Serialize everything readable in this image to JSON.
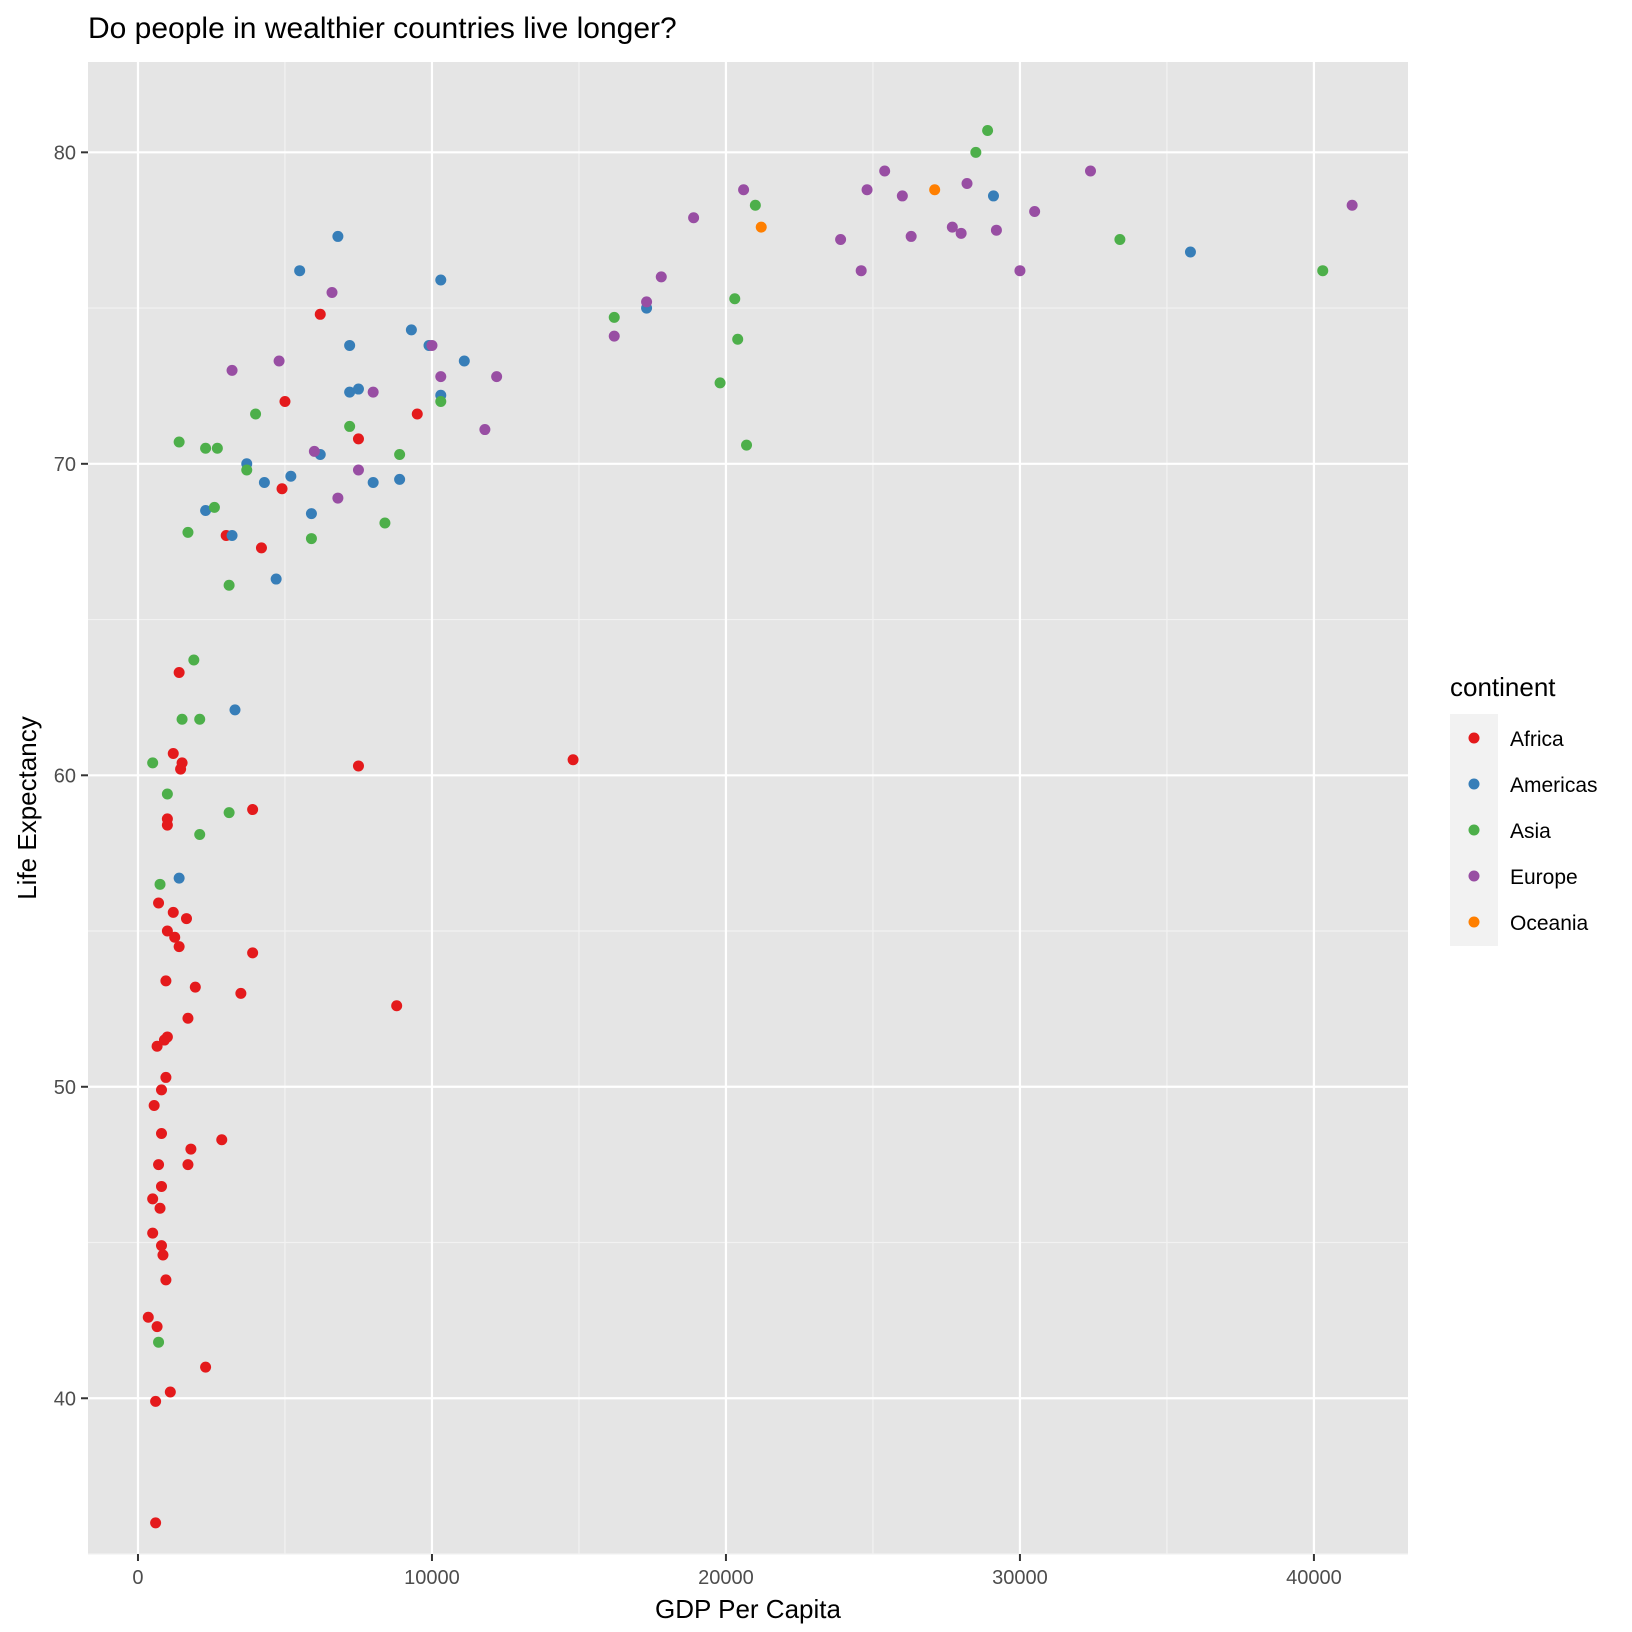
{
  "chart_data": {
    "type": "scatter",
    "title": "Do people in wealthier countries live longer?",
    "xlabel": "GDP Per Capita",
    "ylabel": "Life Expectancy",
    "xlim": [
      -1700,
      43200
    ],
    "ylim": [
      35,
      82.9
    ],
    "x_ticks": [
      0,
      10000,
      20000,
      30000,
      40000
    ],
    "y_ticks": [
      40,
      50,
      60,
      70,
      80
    ],
    "grid": true,
    "legend": {
      "title": "continent",
      "position": "right"
    },
    "colors": {
      "Africa": "#E41A1C",
      "Americas": "#377EB8",
      "Asia": "#4DAF4A",
      "Europe": "#984EA3",
      "Oceania": "#FF7F00"
    },
    "series": [
      {
        "name": "Africa",
        "points": [
          [
            6200,
            74.8
          ],
          [
            5000,
            72.0
          ],
          [
            7500,
            70.8
          ],
          [
            9500,
            71.6
          ],
          [
            4900,
            69.2
          ],
          [
            3000,
            67.7
          ],
          [
            4200,
            67.3
          ],
          [
            1400,
            63.3
          ],
          [
            1200,
            60.7
          ],
          [
            1500,
            60.4
          ],
          [
            1450,
            60.2
          ],
          [
            7500,
            60.3
          ],
          [
            14800,
            60.5
          ],
          [
            3900,
            58.9
          ],
          [
            1000,
            58.6
          ],
          [
            1000,
            58.4
          ],
          [
            700,
            55.9
          ],
          [
            1200,
            55.6
          ],
          [
            1650,
            55.4
          ],
          [
            1000,
            55.0
          ],
          [
            1250,
            54.8
          ],
          [
            1400,
            54.5
          ],
          [
            3900,
            54.3
          ],
          [
            950,
            53.4
          ],
          [
            1950,
            53.2
          ],
          [
            3500,
            53.0
          ],
          [
            8800,
            52.6
          ],
          [
            1700,
            52.2
          ],
          [
            1000,
            51.6
          ],
          [
            900,
            51.5
          ],
          [
            650,
            51.3
          ],
          [
            950,
            50.3
          ],
          [
            800,
            49.9
          ],
          [
            550,
            49.4
          ],
          [
            800,
            48.5
          ],
          [
            2850,
            48.3
          ],
          [
            1800,
            48.0
          ],
          [
            700,
            47.5
          ],
          [
            1700,
            47.5
          ],
          [
            800,
            46.8
          ],
          [
            500,
            46.4
          ],
          [
            750,
            46.1
          ],
          [
            500,
            45.3
          ],
          [
            800,
            44.9
          ],
          [
            850,
            44.6
          ],
          [
            950,
            43.8
          ],
          [
            350,
            42.6
          ],
          [
            650,
            42.3
          ],
          [
            2300,
            41.0
          ],
          [
            1100,
            40.2
          ],
          [
            600,
            39.9
          ],
          [
            600,
            36.0
          ]
        ]
      },
      {
        "name": "Americas",
        "points": [
          [
            6800,
            77.3
          ],
          [
            5500,
            76.2
          ],
          [
            10300,
            75.9
          ],
          [
            7200,
            73.8
          ],
          [
            9300,
            74.3
          ],
          [
            9900,
            73.8
          ],
          [
            11100,
            73.3
          ],
          [
            7200,
            72.3
          ],
          [
            7500,
            72.4
          ],
          [
            10300,
            72.2
          ],
          [
            6200,
            70.3
          ],
          [
            3700,
            70.0
          ],
          [
            5200,
            69.6
          ],
          [
            4300,
            69.4
          ],
          [
            8000,
            69.4
          ],
          [
            8900,
            69.5
          ],
          [
            2300,
            68.5
          ],
          [
            5900,
            68.4
          ],
          [
            3200,
            67.7
          ],
          [
            4700,
            66.3
          ],
          [
            3300,
            62.1
          ],
          [
            1400,
            56.7
          ],
          [
            17300,
            75.0
          ],
          [
            29100,
            78.6
          ],
          [
            35800,
            76.8
          ]
        ]
      },
      {
        "name": "Asia",
        "points": [
          [
            28900,
            80.7
          ],
          [
            28500,
            80.0
          ],
          [
            21000,
            78.3
          ],
          [
            33400,
            77.2
          ],
          [
            40300,
            76.2
          ],
          [
            20300,
            75.3
          ],
          [
            16200,
            74.7
          ],
          [
            20400,
            74.0
          ],
          [
            19800,
            72.6
          ],
          [
            20700,
            70.6
          ],
          [
            10300,
            72.0
          ],
          [
            7200,
            71.2
          ],
          [
            4000,
            71.6
          ],
          [
            1400,
            70.7
          ],
          [
            2300,
            70.5
          ],
          [
            2700,
            70.5
          ],
          [
            8900,
            70.3
          ],
          [
            3700,
            69.8
          ],
          [
            2600,
            68.6
          ],
          [
            1700,
            67.8
          ],
          [
            8400,
            68.1
          ],
          [
            5900,
            67.6
          ],
          [
            3100,
            66.1
          ],
          [
            1900,
            63.7
          ],
          [
            1500,
            61.8
          ],
          [
            2100,
            61.8
          ],
          [
            500,
            60.4
          ],
          [
            1000,
            59.4
          ],
          [
            3100,
            58.8
          ],
          [
            2100,
            58.1
          ],
          [
            750,
            56.5
          ],
          [
            700,
            41.8
          ]
        ]
      },
      {
        "name": "Europe",
        "points": [
          [
            41300,
            78.3
          ],
          [
            32400,
            79.4
          ],
          [
            25400,
            79.4
          ],
          [
            28200,
            79.0
          ],
          [
            24800,
            78.8
          ],
          [
            20600,
            78.8
          ],
          [
            26000,
            78.6
          ],
          [
            30500,
            78.1
          ],
          [
            18900,
            77.9
          ],
          [
            27700,
            77.6
          ],
          [
            29200,
            77.5
          ],
          [
            28000,
            77.4
          ],
          [
            26300,
            77.3
          ],
          [
            23900,
            77.2
          ],
          [
            24600,
            76.2
          ],
          [
            30000,
            76.2
          ],
          [
            17800,
            76.0
          ],
          [
            6600,
            75.5
          ],
          [
            17300,
            75.2
          ],
          [
            16200,
            74.1
          ],
          [
            3200,
            73.0
          ],
          [
            4800,
            73.3
          ],
          [
            10000,
            73.8
          ],
          [
            10300,
            72.8
          ],
          [
            12200,
            72.8
          ],
          [
            8000,
            72.3
          ],
          [
            11800,
            71.1
          ],
          [
            6000,
            70.4
          ],
          [
            7500,
            69.8
          ],
          [
            6800,
            68.9
          ]
        ]
      },
      {
        "name": "Oceania",
        "points": [
          [
            27100,
            78.8
          ],
          [
            21200,
            77.6
          ]
        ]
      }
    ]
  }
}
